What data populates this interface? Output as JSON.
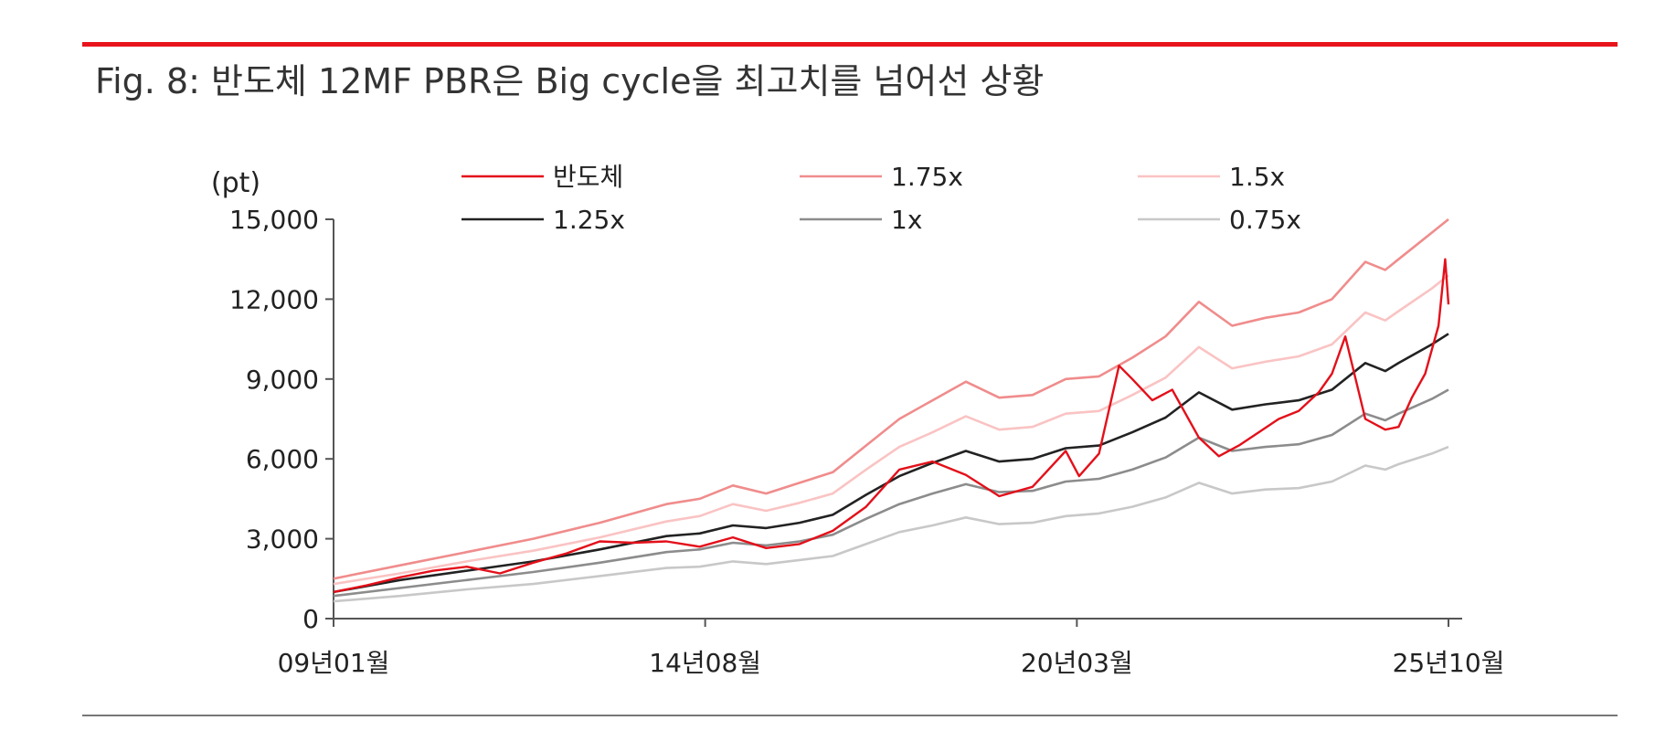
{
  "figure": {
    "title": "Fig. 8: 반도체 12MF PBR은 Big cycle을 최고치를 넘어선 상황"
  },
  "chart_data": {
    "type": "line",
    "ylabel": "(pt)",
    "ylim": [
      0,
      15000
    ],
    "yticks": [
      0,
      3000,
      6000,
      9000,
      12000,
      15000
    ],
    "ytick_labels": [
      "0",
      "3,000",
      "6,000",
      "9,000",
      "12,000",
      "15,000"
    ],
    "xlim": [
      2009.0,
      2025.75
    ],
    "xticks": [
      2009.0,
      2014.583,
      2020.167,
      2025.75
    ],
    "xtick_labels": [
      "09년01월",
      "14년08월",
      "20년03월",
      "25년10월"
    ],
    "legend_position": "top",
    "grid": false,
    "series": [
      {
        "name": "반도체",
        "color": "#e3101a",
        "x": [
          2009.0,
          2009.5,
          2010.0,
          2010.5,
          2011.0,
          2011.5,
          2012.0,
          2012.5,
          2013.0,
          2013.5,
          2014.0,
          2014.5,
          2015.0,
          2015.5,
          2016.0,
          2016.5,
          2017.0,
          2017.5,
          2018.0,
          2018.5,
          2019.0,
          2019.5,
          2020.0,
          2020.2,
          2020.5,
          2020.8,
          2021.0,
          2021.3,
          2021.6,
          2022.0,
          2022.3,
          2022.6,
          2022.9,
          2023.2,
          2023.5,
          2023.8,
          2024.0,
          2024.2,
          2024.5,
          2024.8,
          2025.0,
          2025.2,
          2025.4,
          2025.6,
          2025.7,
          2025.75
        ],
        "values": [
          1000,
          1250,
          1550,
          1800,
          1950,
          1700,
          2100,
          2450,
          2900,
          2850,
          2900,
          2700,
          3050,
          2650,
          2800,
          3300,
          4200,
          5600,
          5900,
          5400,
          4600,
          4950,
          6300,
          5350,
          6200,
          9500,
          9000,
          8200,
          8600,
          6800,
          6100,
          6500,
          7000,
          7500,
          7800,
          8500,
          9200,
          10600,
          7500,
          7100,
          7200,
          8300,
          9200,
          11000,
          13500,
          11800
        ]
      },
      {
        "name": "1.75x",
        "color": "#f08c8c",
        "x": [
          2009.0,
          2010.0,
          2011.0,
          2012.0,
          2013.0,
          2014.0,
          2014.5,
          2015.0,
          2015.5,
          2016.0,
          2016.5,
          2017.0,
          2017.5,
          2018.0,
          2018.5,
          2019.0,
          2019.5,
          2020.0,
          2020.5,
          2021.0,
          2021.5,
          2022.0,
          2022.5,
          2023.0,
          2023.5,
          2024.0,
          2024.5,
          2024.8,
          2025.0,
          2025.5,
          2025.75
        ],
        "values": [
          1500,
          2000,
          2500,
          3000,
          3600,
          4300,
          4500,
          5000,
          4700,
          5100,
          5500,
          6500,
          7500,
          8200,
          8900,
          8300,
          8400,
          9000,
          9100,
          9800,
          10600,
          11900,
          11000,
          11300,
          11500,
          12000,
          13400,
          13100,
          13500,
          14500,
          15000
        ]
      },
      {
        "name": "1.5x",
        "color": "#fac3c3",
        "x": [
          2009.0,
          2010.0,
          2011.0,
          2012.0,
          2013.0,
          2014.0,
          2014.5,
          2015.0,
          2015.5,
          2016.0,
          2016.5,
          2017.0,
          2017.5,
          2018.0,
          2018.5,
          2019.0,
          2019.5,
          2020.0,
          2020.5,
          2021.0,
          2021.5,
          2022.0,
          2022.5,
          2023.0,
          2023.5,
          2024.0,
          2024.5,
          2024.8,
          2025.0,
          2025.5,
          2025.75
        ],
        "values": [
          1300,
          1700,
          2150,
          2550,
          3050,
          3650,
          3850,
          4300,
          4050,
          4350,
          4700,
          5600,
          6450,
          7000,
          7600,
          7100,
          7200,
          7700,
          7800,
          8400,
          9050,
          10200,
          9400,
          9650,
          9850,
          10300,
          11500,
          11200,
          11550,
          12400,
          12900
        ]
      },
      {
        "name": "1.25x",
        "color": "#222222",
        "x": [
          2009.0,
          2010.0,
          2011.0,
          2012.0,
          2013.0,
          2014.0,
          2014.5,
          2015.0,
          2015.5,
          2016.0,
          2016.5,
          2017.0,
          2017.5,
          2018.0,
          2018.5,
          2019.0,
          2019.5,
          2020.0,
          2020.5,
          2021.0,
          2021.5,
          2022.0,
          2022.5,
          2023.0,
          2023.5,
          2024.0,
          2024.5,
          2024.8,
          2025.0,
          2025.5,
          2025.75
        ],
        "values": [
          1000,
          1450,
          1800,
          2150,
          2600,
          3100,
          3200,
          3500,
          3400,
          3600,
          3900,
          4650,
          5350,
          5850,
          6300,
          5900,
          6000,
          6400,
          6500,
          7000,
          7550,
          8500,
          7850,
          8050,
          8200,
          8600,
          9600,
          9300,
          9600,
          10300,
          10700
        ]
      },
      {
        "name": "1x",
        "color": "#8c8c8c",
        "x": [
          2009.0,
          2010.0,
          2011.0,
          2012.0,
          2013.0,
          2014.0,
          2014.5,
          2015.0,
          2015.5,
          2016.0,
          2016.5,
          2017.0,
          2017.5,
          2018.0,
          2018.5,
          2019.0,
          2019.5,
          2020.0,
          2020.5,
          2021.0,
          2021.5,
          2022.0,
          2022.5,
          2023.0,
          2023.5,
          2024.0,
          2024.5,
          2024.8,
          2025.0,
          2025.5,
          2025.75
        ],
        "values": [
          850,
          1150,
          1450,
          1750,
          2100,
          2500,
          2600,
          2850,
          2750,
          2900,
          3150,
          3750,
          4300,
          4700,
          5050,
          4750,
          4800,
          5150,
          5250,
          5600,
          6050,
          6800,
          6300,
          6450,
          6550,
          6900,
          7700,
          7450,
          7700,
          8250,
          8600
        ]
      },
      {
        "name": "0.75x",
        "color": "#c8c8c8",
        "x": [
          2009.0,
          2010.0,
          2011.0,
          2012.0,
          2013.0,
          2014.0,
          2014.5,
          2015.0,
          2015.5,
          2016.0,
          2016.5,
          2017.0,
          2017.5,
          2018.0,
          2018.5,
          2019.0,
          2019.5,
          2020.0,
          2020.5,
          2021.0,
          2021.5,
          2022.0,
          2022.5,
          2023.0,
          2023.5,
          2024.0,
          2024.5,
          2024.8,
          2025.0,
          2025.5,
          2025.75
        ],
        "values": [
          650,
          850,
          1100,
          1300,
          1600,
          1900,
          1950,
          2150,
          2050,
          2200,
          2350,
          2800,
          3250,
          3500,
          3800,
          3550,
          3600,
          3850,
          3950,
          4200,
          4550,
          5100,
          4700,
          4850,
          4900,
          5150,
          5750,
          5600,
          5800,
          6200,
          6450
        ]
      }
    ]
  }
}
